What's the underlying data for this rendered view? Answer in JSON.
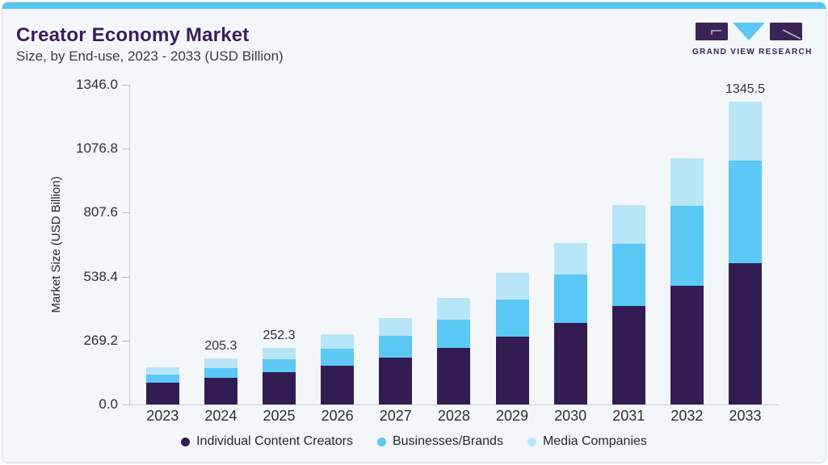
{
  "header": {
    "title": "Creator Economy Market",
    "subtitle": "Size, by End-use, 2023 - 2033 (USD Billion)"
  },
  "logo": {
    "text": "GRAND VIEW RESEARCH"
  },
  "chart_data": {
    "type": "bar",
    "stacked": true,
    "title": "Creator Economy Market Size, by End-use, 2023 - 2033 (USD Billion)",
    "categories": [
      "2023",
      "2024",
      "2025",
      "2026",
      "2027",
      "2028",
      "2029",
      "2030",
      "2031",
      "2032",
      "2033"
    ],
    "series": [
      {
        "name": "Individual Content Creators",
        "color": "#331c52",
        "values": [
          96.2,
          117.0,
          141.8,
          171.7,
          207.5,
          250.1,
          301.4,
          362.9,
          436.8,
          525.3,
          628.4
        ]
      },
      {
        "name": "Businesses/Brands",
        "color": "#5bc8f5",
        "values": [
          35.6,
          45.6,
          58.3,
          75.6,
          98.2,
          127.7,
          165.5,
          214.1,
          276.4,
          356.0,
          456.1
        ]
      },
      {
        "name": "Media Companies",
        "color": "#b9e5f8",
        "values": [
          34.7,
          42.7,
          52.2,
          63.8,
          77.8,
          95.0,
          116.0,
          141.6,
          172.7,
          210.8,
          261.0
        ]
      }
    ],
    "totals": [
      166.5,
      205.3,
      252.3,
      311.1,
      383.5,
      472.8,
      582.9,
      718.6,
      885.9,
      1092.1,
      1345.5
    ],
    "data_labels": [
      {
        "index": 1,
        "text": "205.3"
      },
      {
        "index": 2,
        "text": "252.3"
      },
      {
        "index": 10,
        "text": "1345.5"
      }
    ],
    "xlabel": "",
    "ylabel": "Market Size (USD Billion)",
    "yticks": [
      "0.0",
      "269.2",
      "538.4",
      "807.6",
      "1076.8",
      "1346.0"
    ],
    "ylim": [
      0,
      1346
    ],
    "grid": false,
    "legend_position": "bottom"
  },
  "legend": {
    "items": [
      {
        "label": "Individual Content Creators",
        "color": "#331c52"
      },
      {
        "label": "Businesses/Brands",
        "color": "#5bc8f5"
      },
      {
        "label": "Media Companies",
        "color": "#b9e5f8"
      }
    ]
  },
  "colors": {
    "accent_bar": "#58c6f2",
    "card_background": "#f3f7fa",
    "card_border": "#d5dbe1",
    "title_text": "#3a1d5d",
    "axis_line": "#c8cdd3",
    "tick_text": "#2e2e33",
    "logo_purple": "#3b2356",
    "logo_blue": "#5bc8f5"
  }
}
